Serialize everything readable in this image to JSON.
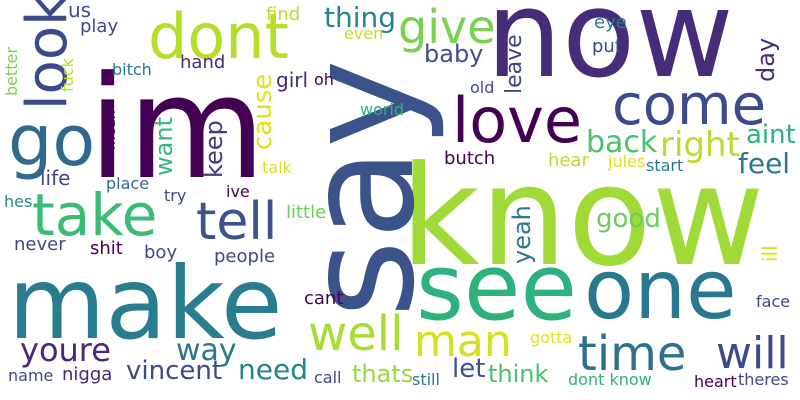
{
  "words": [
    {
      "text": "now",
      "color": "#472c7a",
      "rot": 0
    },
    {
      "text": "know",
      "color": "#a0da39",
      "rot": 0
    },
    {
      "text": "say",
      "color": "#3b528b",
      "rot": 90
    },
    {
      "text": "im",
      "color": "#440154",
      "rot": 0
    },
    {
      "text": "make",
      "color": "#287d8e",
      "rot": 0
    },
    {
      "text": "see",
      "color": "#2db27d",
      "rot": 0
    },
    {
      "text": "one",
      "color": "#2a788e",
      "rot": 0
    },
    {
      "text": "dont",
      "color": "#b5de2b",
      "rot": 0
    },
    {
      "text": "go",
      "color": "#31688e",
      "rot": 0
    },
    {
      "text": "look",
      "color": "#3e4989",
      "rot": 90
    },
    {
      "text": "take",
      "color": "#3bbb75",
      "rot": 0
    },
    {
      "text": "come",
      "color": "#3e4a89",
      "rot": 0
    },
    {
      "text": "love",
      "color": "#440154",
      "rot": 0
    },
    {
      "text": "give",
      "color": "#7ad151",
      "rot": 0
    },
    {
      "text": "tell",
      "color": "#3b528b",
      "rot": 0
    },
    {
      "text": "time",
      "color": "#2c728e",
      "rot": 0
    },
    {
      "text": "will",
      "color": "#3e4a89",
      "rot": 0
    },
    {
      "text": "well",
      "color": "#a8db34",
      "rot": 0
    },
    {
      "text": "man",
      "color": "#d2e21b",
      "rot": 0
    },
    {
      "text": "youre",
      "color": "#482878",
      "rot": 0
    },
    {
      "text": "way",
      "color": "#2a788e",
      "rot": 0
    },
    {
      "text": "right",
      "color": "#b5de2b",
      "rot": 0
    },
    {
      "text": "back",
      "color": "#4ac16d",
      "rot": 0
    },
    {
      "text": "need",
      "color": "#25858e",
      "rot": 0
    },
    {
      "text": "vincent",
      "color": "#3e4989",
      "rot": 0
    },
    {
      "text": "let",
      "color": "#3b528b",
      "rot": 0
    },
    {
      "text": "think",
      "color": "#4ac16d",
      "rot": 0
    },
    {
      "text": "thats",
      "color": "#95d840",
      "rot": 0
    },
    {
      "text": "want",
      "color": "#35b779",
      "rot": 90
    },
    {
      "text": "keep",
      "color": "#443a83",
      "rot": 90
    },
    {
      "text": "cause",
      "color": "#dde318",
      "rot": 90
    },
    {
      "text": "thing",
      "color": "#25858e",
      "rot": 0
    },
    {
      "text": "feel",
      "color": "#2a788e",
      "rot": 0
    },
    {
      "text": "aint",
      "color": "#2db27d",
      "rot": 0
    },
    {
      "text": "day",
      "color": "#472c7a",
      "rot": 90
    },
    {
      "text": "leave",
      "color": "#414487",
      "rot": 90
    },
    {
      "text": "baby",
      "color": "#3b528b",
      "rot": 0
    },
    {
      "text": "yeah",
      "color": "#2a788e",
      "rot": 90
    },
    {
      "text": "good",
      "color": "#6ccd5a",
      "rot": 0
    },
    {
      "text": "ill",
      "color": "#d8e219",
      "rot": 90
    },
    {
      "text": "girl",
      "color": "#482878",
      "rot": 0
    },
    {
      "text": "life",
      "color": "#3e4989",
      "rot": 0
    },
    {
      "text": "us",
      "color": "#3e4989",
      "rot": 0
    },
    {
      "text": "play",
      "color": "#3e4989",
      "rot": 0
    },
    {
      "text": "find",
      "color": "#b5de2b",
      "rot": 0
    },
    {
      "text": "even",
      "color": "#c2df23",
      "rot": 0
    },
    {
      "text": "eye",
      "color": "#287d8e",
      "rot": 0
    },
    {
      "text": "put",
      "color": "#3e4989",
      "rot": 0
    },
    {
      "text": "bitch",
      "color": "#2a788e",
      "rot": 0
    },
    {
      "text": "hand",
      "color": "#472c7a",
      "rot": 0
    },
    {
      "text": "oh",
      "color": "#440154",
      "rot": 0
    },
    {
      "text": "old",
      "color": "#3e4989",
      "rot": 0
    },
    {
      "text": "world",
      "color": "#2db27d",
      "rot": 0
    },
    {
      "text": "butch",
      "color": "#440154",
      "rot": 0
    },
    {
      "text": "hear",
      "color": "#b5de2b",
      "rot": 0
    },
    {
      "text": "jules",
      "color": "#d8e219",
      "rot": 0
    },
    {
      "text": "start",
      "color": "#2a788e",
      "rot": 0
    },
    {
      "text": "talk",
      "color": "#d8e219",
      "rot": 0
    },
    {
      "text": "place",
      "color": "#31688e",
      "rot": 0
    },
    {
      "text": "try",
      "color": "#3e4989",
      "rot": 0
    },
    {
      "text": "ive",
      "color": "#440154",
      "rot": 0
    },
    {
      "text": "little",
      "color": "#6ccd5a",
      "rot": 0
    },
    {
      "text": "hes",
      "color": "#25858e",
      "rot": 0
    },
    {
      "text": "never",
      "color": "#3e4989",
      "rot": 0
    },
    {
      "text": "shit",
      "color": "#440154",
      "rot": 0
    },
    {
      "text": "boy",
      "color": "#3e4989",
      "rot": 0
    },
    {
      "text": "people",
      "color": "#3e4989",
      "rot": 0
    },
    {
      "text": "cant",
      "color": "#440154",
      "rot": 0
    },
    {
      "text": "gotta",
      "color": "#dde318",
      "rot": 0
    },
    {
      "text": "face",
      "color": "#3e4989",
      "rot": 0
    },
    {
      "text": "name",
      "color": "#3e4989",
      "rot": 0
    },
    {
      "text": "nigga",
      "color": "#482878",
      "rot": 0
    },
    {
      "text": "call",
      "color": "#3e4989",
      "rot": 0
    },
    {
      "text": "still",
      "color": "#2a788e",
      "rot": 0
    },
    {
      "text": "dont know",
      "color": "#2db27d",
      "rot": 0
    },
    {
      "text": "heart",
      "color": "#440154",
      "rot": 0
    },
    {
      "text": "theres",
      "color": "#3e4989",
      "rot": 0
    },
    {
      "text": "better",
      "color": "#7ad151",
      "rot": 90
    },
    {
      "text": "fuck",
      "color": "#b5de2b",
      "rot": 90
    },
    {
      "text": "mean",
      "color": "#440154",
      "rot": 90
    }
  ]
}
